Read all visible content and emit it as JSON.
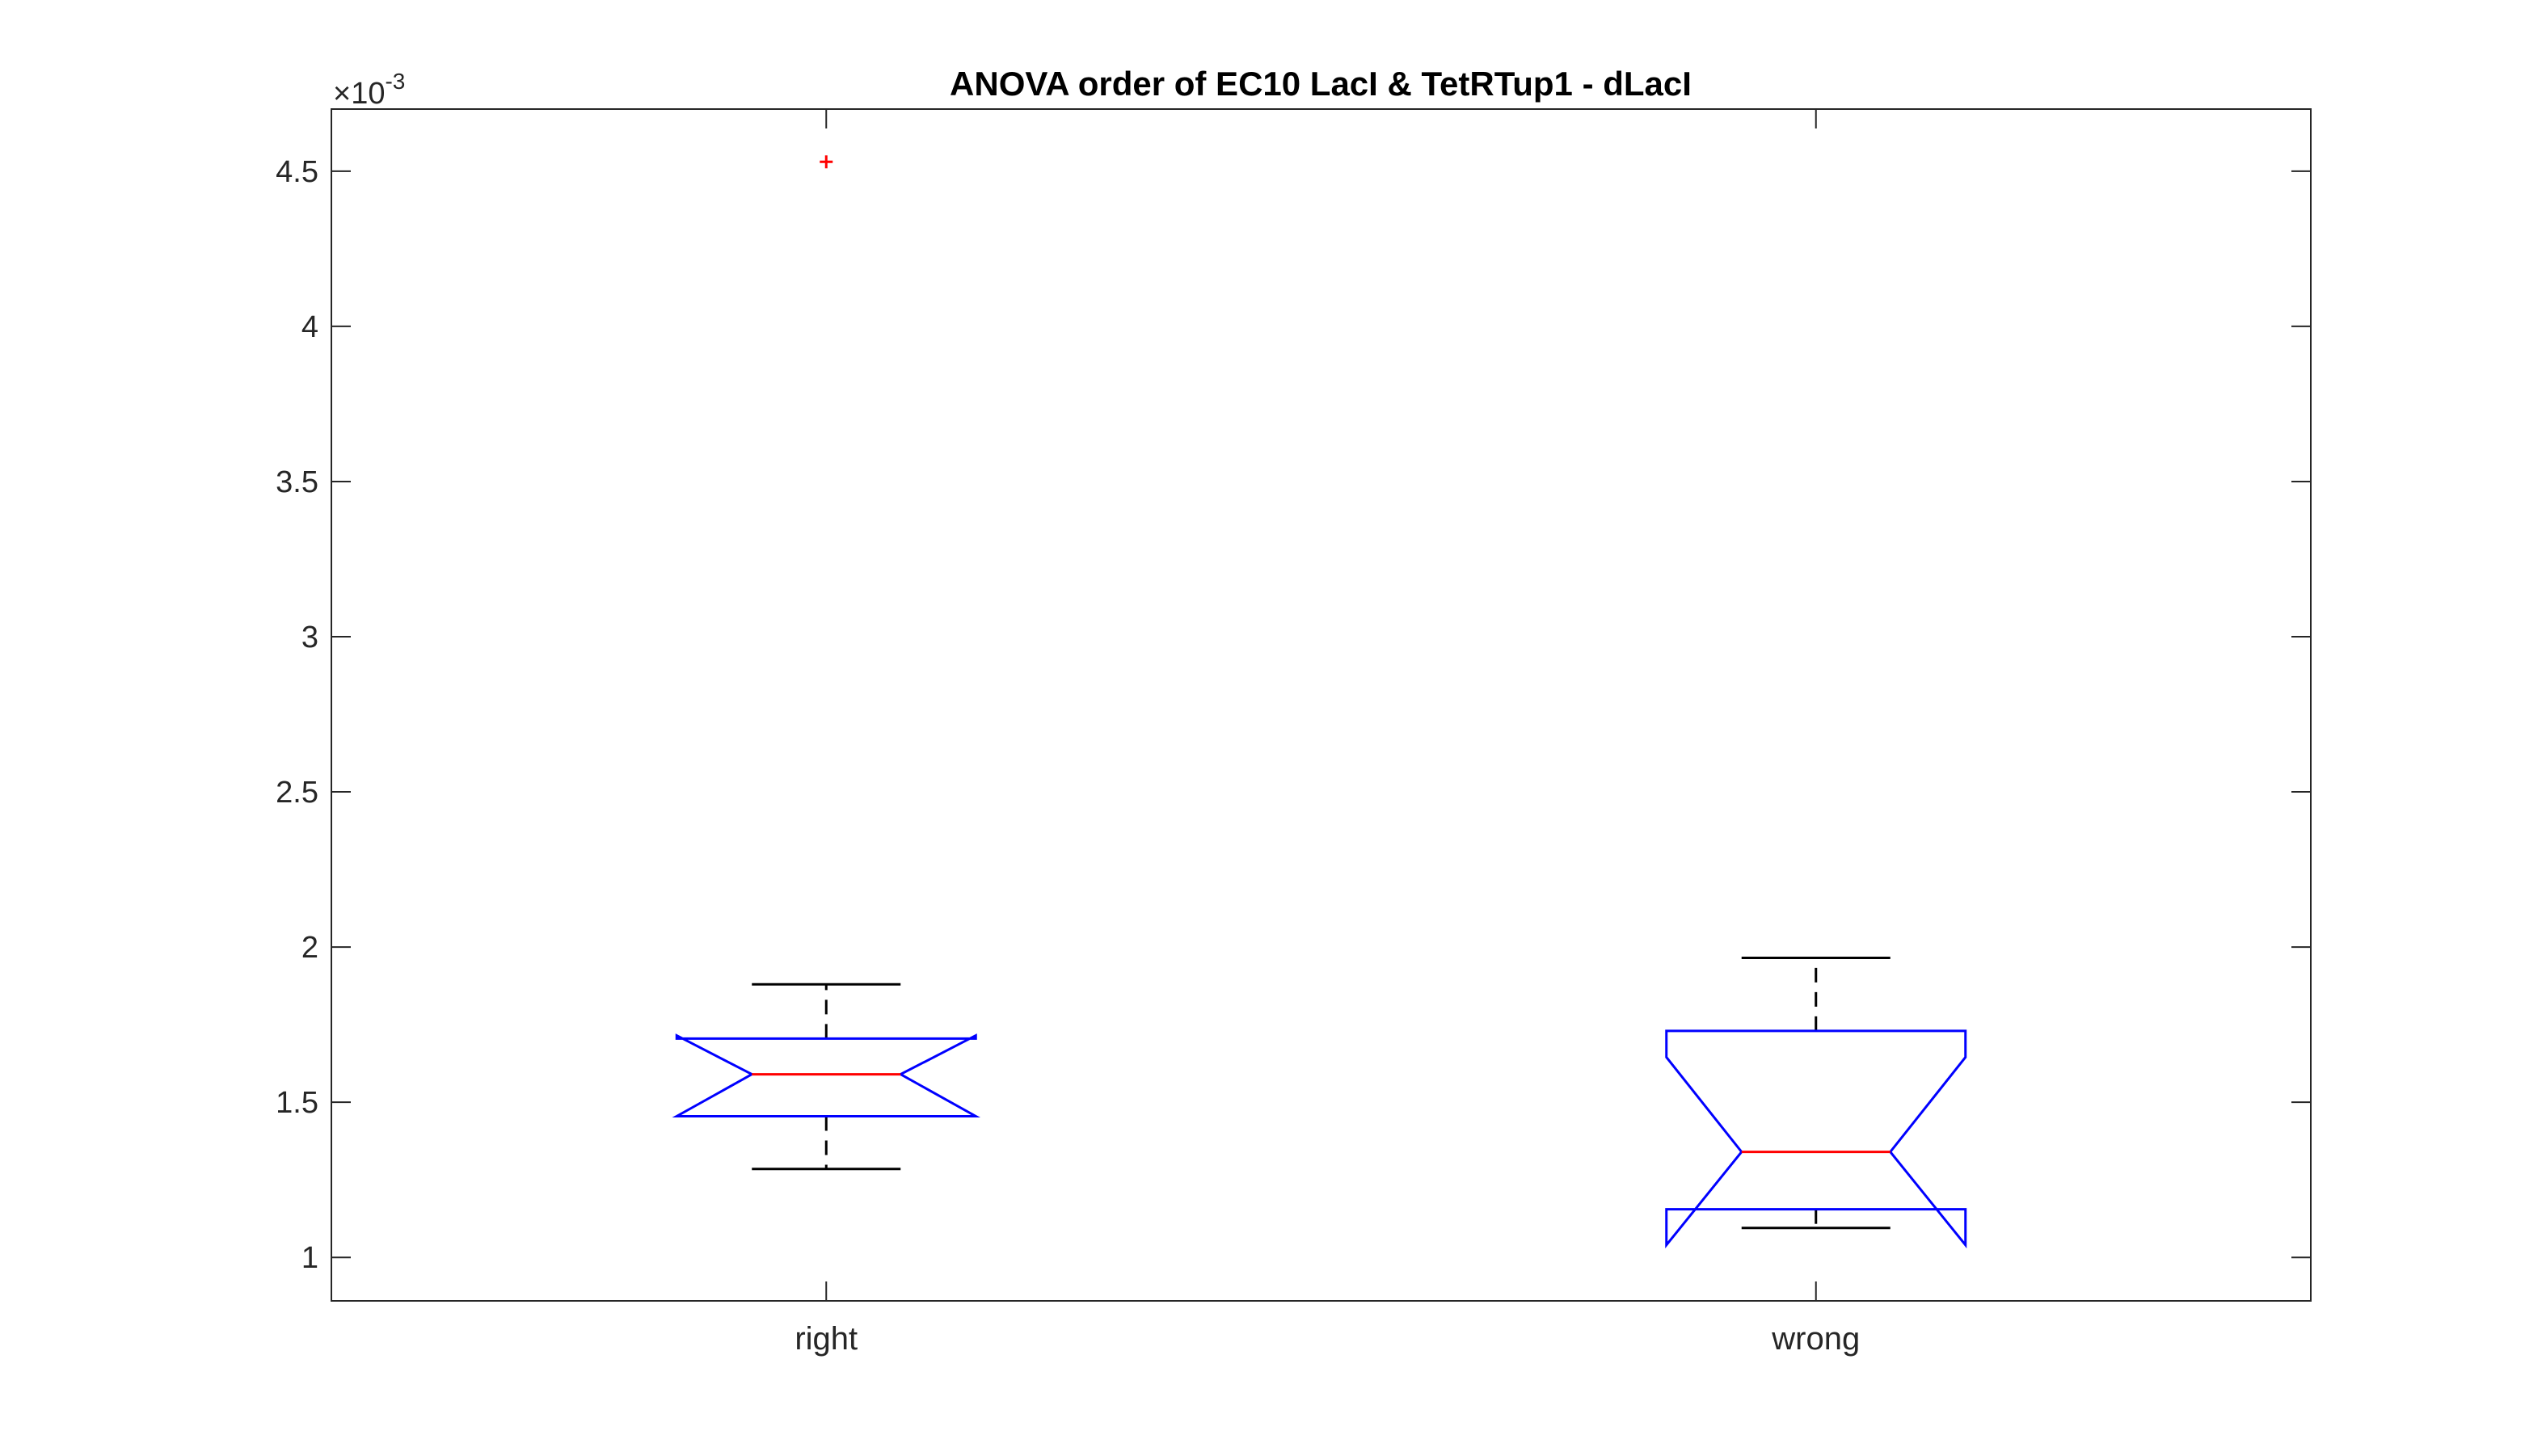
{
  "chart_data": {
    "type": "boxplot",
    "title": "ANOVA order of EC10 LacI & TetRTup1 - dLacI",
    "xlabel": "",
    "ylabel": "",
    "y_multiplier_prefix": "×10",
    "y_multiplier_exponent": "-3",
    "ylim": [
      0.86,
      4.7
    ],
    "yticks": [
      1,
      1.5,
      2,
      2.5,
      3,
      3.5,
      4,
      4.5
    ],
    "ytick_labels": [
      "1",
      "1.5",
      "2",
      "2.5",
      "3",
      "3.5",
      "4",
      "4.5"
    ],
    "categories": [
      "right",
      "wrong"
    ],
    "notched": true,
    "boxes": [
      {
        "category": "right",
        "whisker_low": 1.285,
        "q1": 1.455,
        "notch_low": 1.455,
        "median": 1.59,
        "notch_high": 1.715,
        "q3": 1.705,
        "whisker_high": 1.88,
        "outliers": [
          4.53
        ]
      },
      {
        "category": "wrong",
        "whisker_low": 1.095,
        "q1": 1.155,
        "notch_low": 1.04,
        "median": 1.34,
        "notch_high": 1.645,
        "q3": 1.73,
        "whisker_high": 1.965,
        "outliers": []
      }
    ],
    "grid": false,
    "colors": {
      "box": "#0000ff",
      "median": "#ff0000",
      "whisker": "#000000",
      "outlier": "#ff0000",
      "axes": "#262626"
    }
  }
}
